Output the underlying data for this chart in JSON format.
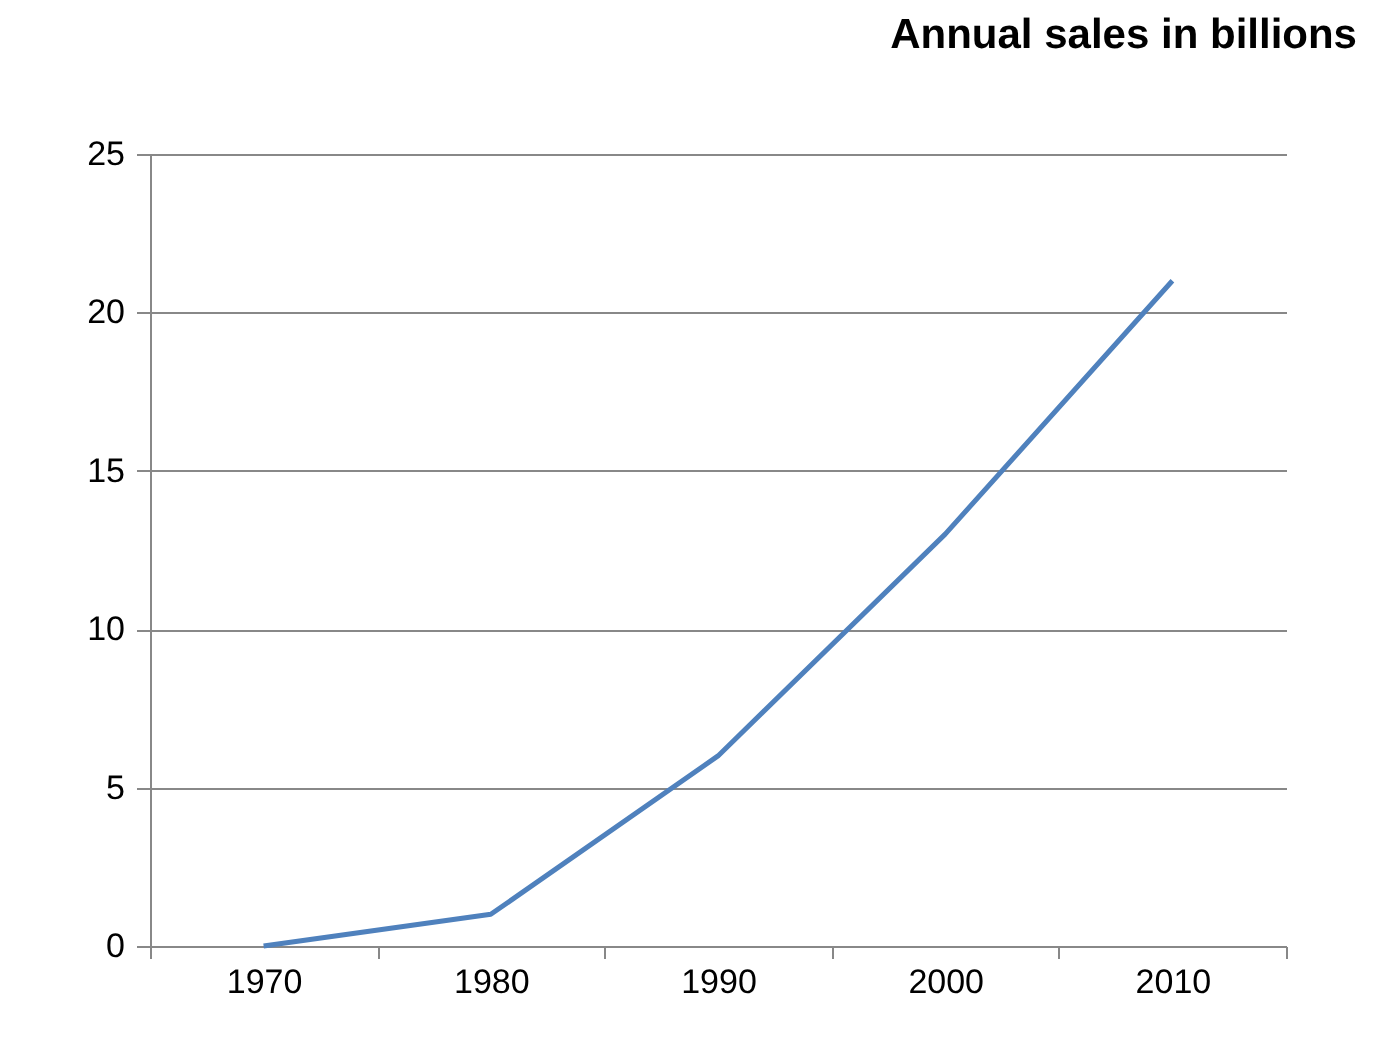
{
  "chart_data": {
    "type": "line",
    "title": "Annual sales in billions",
    "categories": [
      "1970",
      "1980",
      "1990",
      "2000",
      "2010"
    ],
    "series": [
      {
        "color": "#4f81bd",
        "values": [
          0,
          1,
          6,
          13,
          21
        ]
      }
    ],
    "ylim": [
      0,
      25
    ],
    "yticks": [
      0,
      5,
      10,
      15,
      20,
      25
    ],
    "grid": "y"
  }
}
